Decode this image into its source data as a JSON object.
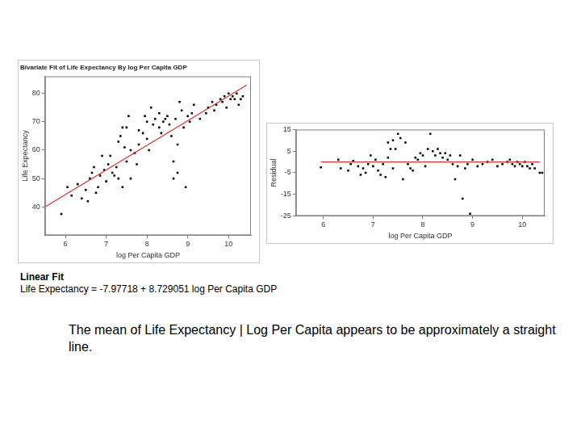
{
  "chart_data": [
    {
      "type": "scatter",
      "title": "Bivariate Fit of Life Expectancy By log Per Capita GDP",
      "x_label": "log Per Capita GDP",
      "y_label": "Life Expectancy",
      "xlim": [
        5.5,
        10.55
      ],
      "xticks": [
        6,
        7,
        8,
        9,
        10
      ],
      "ylim": [
        30,
        86
      ],
      "yticks": [
        40,
        50,
        60,
        70,
        80
      ],
      "grid": false,
      "series": [
        {
          "type": "scatter",
          "color": "#000000",
          "marker": "square",
          "x": [
            5.9,
            6.05,
            6.15,
            6.3,
            6.4,
            6.5,
            6.55,
            6.6,
            6.65,
            6.7,
            6.75,
            6.8,
            6.85,
            6.9,
            6.95,
            7.0,
            7.05,
            7.1,
            7.15,
            7.2,
            7.25,
            7.3,
            7.3,
            7.35,
            7.4,
            7.4,
            7.45,
            7.5,
            7.5,
            7.55,
            7.6,
            7.6,
            7.7,
            7.75,
            7.8,
            7.8,
            7.9,
            7.95,
            8.0,
            8.0,
            8.05,
            8.1,
            8.15,
            8.2,
            8.3,
            8.3,
            8.35,
            8.4,
            8.45,
            8.5,
            8.55,
            8.6,
            8.65,
            8.7,
            8.75,
            8.8,
            8.85,
            8.9,
            8.95,
            9.0,
            9.05,
            9.1,
            9.15,
            9.3,
            9.45,
            9.5,
            9.6,
            9.65,
            9.7,
            9.8,
            9.85,
            9.9,
            9.95,
            10.0,
            10.05,
            10.1,
            10.15,
            10.2,
            10.25,
            10.3,
            10.35,
            8.75,
            8.65
          ],
          "values": [
            37.5,
            47,
            44,
            48,
            43,
            46,
            42,
            50,
            52,
            54,
            45,
            47,
            51,
            58,
            53,
            49,
            55,
            58,
            52,
            51,
            54,
            50,
            63,
            65,
            68,
            47,
            61,
            68,
            56,
            72,
            50,
            60,
            59,
            55,
            62,
            67,
            66,
            72,
            70,
            64,
            60,
            75,
            69,
            71,
            68,
            73,
            66,
            70,
            71,
            72,
            69,
            65,
            56,
            71,
            62,
            77,
            74,
            68,
            47,
            72,
            70,
            73,
            76,
            71,
            73,
            75,
            77,
            74,
            76,
            78,
            77,
            79,
            75,
            80,
            78,
            79,
            78,
            80,
            76,
            78,
            79,
            52,
            50
          ]
        },
        {
          "type": "line",
          "color": "#d9302c",
          "line_style": "solid",
          "x": [
            5.5,
            10.45
          ],
          "values": [
            40,
            83
          ]
        }
      ]
    },
    {
      "type": "scatter",
      "x_label": "log Per Capita GDP",
      "y_label": "Residual",
      "xlim": [
        5.45,
        10.45
      ],
      "xticks": [
        6,
        7,
        8,
        9,
        10
      ],
      "ylim": [
        -25,
        15
      ],
      "yticks": [
        -25,
        -15,
        -5,
        5,
        15
      ],
      "grid": false,
      "series": [
        {
          "type": "scatter",
          "color": "#000000",
          "marker": "square",
          "x": [
            5.95,
            6.3,
            6.35,
            6.5,
            6.55,
            6.6,
            6.7,
            6.75,
            6.8,
            6.85,
            6.9,
            6.95,
            7.0,
            7.05,
            7.1,
            7.15,
            7.2,
            7.25,
            7.3,
            7.3,
            7.35,
            7.4,
            7.4,
            7.45,
            7.5,
            7.55,
            7.6,
            7.65,
            7.7,
            7.75,
            7.8,
            7.85,
            7.9,
            7.95,
            8.0,
            8.05,
            8.1,
            8.15,
            8.2,
            8.25,
            8.3,
            8.35,
            8.4,
            8.45,
            8.5,
            8.55,
            8.6,
            8.65,
            8.7,
            8.75,
            8.8,
            8.85,
            8.9,
            8.95,
            9.0,
            9.1,
            9.2,
            9.3,
            9.4,
            9.5,
            9.6,
            9.7,
            9.75,
            9.8,
            9.85,
            9.9,
            9.95,
            10.0,
            10.05,
            10.1,
            10.15,
            10.2,
            10.25,
            10.35,
            10.4
          ],
          "values": [
            -2.5,
            1,
            -3,
            -4,
            -1,
            0.5,
            -2,
            -6,
            -3,
            -5,
            -1,
            3,
            -2,
            1,
            -4,
            -6,
            -1,
            -7,
            2,
            9,
            6,
            10,
            -3,
            6,
            13,
            11,
            -8,
            9,
            -1,
            -3,
            -4,
            2,
            1,
            4,
            3,
            -2,
            6,
            13,
            5,
            3,
            6,
            4,
            2,
            4,
            1,
            3,
            -1,
            -8,
            -2,
            3,
            -17,
            -3,
            -1,
            -24,
            1,
            -2,
            -1,
            0,
            1,
            -2,
            -1,
            0,
            1,
            -1,
            -2,
            0,
            -1,
            -2,
            0,
            -2,
            -3,
            -1,
            -3,
            -5,
            -5
          ]
        },
        {
          "type": "line",
          "color": "#d9302c",
          "line_style": "solid",
          "x": [
            5.95,
            10.35
          ],
          "values": [
            0,
            0
          ]
        }
      ]
    }
  ],
  "fit": {
    "heading": "Linear Fit",
    "equation": "Life Expectancy = -7.97718 + 8.729051 log Per Capita GDP"
  },
  "caption": "The mean of Life Expectancy | Log Per Capita appears to be approximately a straight line."
}
